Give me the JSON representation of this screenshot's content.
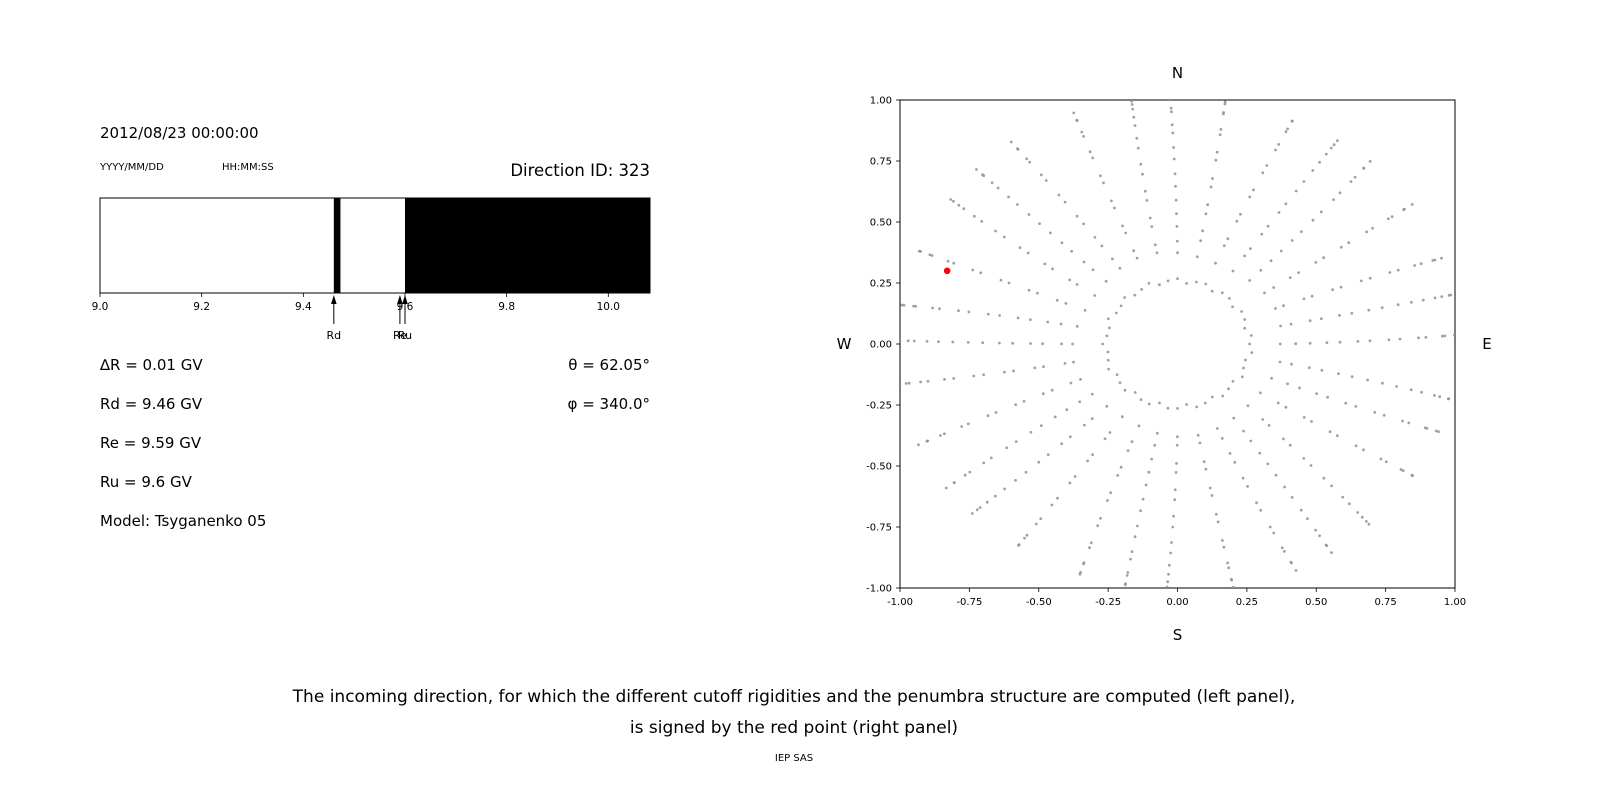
{
  "header": {
    "datetime": "2012/08/23 00:00:00",
    "date_format_label": "YYYY/MM/DD",
    "time_format_label": "HH:MM:SS",
    "direction_id": "Direction ID: 323"
  },
  "left_panel": {
    "info_lines": [
      "∆R = 0.01 GV",
      "Rd = 9.46 GV",
      "Re = 9.59 GV",
      "Ru = 9.6 GV",
      "Model: Tsyganenko 05"
    ],
    "theta": "θ = 62.05°",
    "phi": "φ = 340.0°"
  },
  "caption": {
    "line1": "The incoming direction, for which the different cutoff rigidities and the penumbra structure are computed (left panel),",
    "line2": "is signed by the red point (right panel)",
    "credit": "IEP SAS"
  },
  "chart_data": [
    {
      "type": "bar",
      "subtype": "penumbra-rigidity-band",
      "description": "Cutoff rigidity penumbra: white = allowed, black = forbidden rigidity bands",
      "xlim": [
        9.0,
        10.082
      ],
      "x_ticks": [
        {
          "v": 9.0,
          "label": "9.0"
        },
        {
          "v": 9.2,
          "label": "9.2"
        },
        {
          "v": 9.4,
          "label": "9.4"
        },
        {
          "v": 9.6,
          "label": "9.6"
        },
        {
          "v": 9.8,
          "label": "9.8"
        },
        {
          "v": 10.0,
          "label": "10.0"
        }
      ],
      "values": {
        "delta_R_GV": 0.01,
        "Rd_GV": 9.46,
        "Re_GV": 9.59,
        "Ru_GV": 9.6,
        "theta_deg": 62.05,
        "phi_deg": 340.0,
        "model": "Tsyganenko 05",
        "direction_id": 323,
        "datetime": "2012/08/23 00:00:00"
      },
      "forbidden_bands": [
        [
          9.46,
          9.473
        ],
        [
          9.6,
          10.082
        ]
      ],
      "allowed_color": "#ffffff",
      "forbidden_color": "#000000",
      "markers": [
        {
          "label": "Rd",
          "x": 9.46
        },
        {
          "label": "Re",
          "x": 9.59
        },
        {
          "label": "Ru",
          "x": 9.6
        }
      ]
    },
    {
      "type": "scatter",
      "subtype": "incoming-direction-map",
      "compass": {
        "top": "N",
        "bottom": "S",
        "left": "W",
        "right": "E"
      },
      "xlim": [
        -1.0,
        1.0
      ],
      "ylim": [
        -1.0,
        1.0
      ],
      "x_ticks": [
        {
          "v": -1.0,
          "label": "-1.00"
        },
        {
          "v": -0.75,
          "label": "-0.75"
        },
        {
          "v": -0.5,
          "label": "-0.50"
        },
        {
          "v": -0.25,
          "label": "-0.25"
        },
        {
          "v": 0.0,
          "label": "0.00"
        },
        {
          "v": 0.25,
          "label": "0.25"
        },
        {
          "v": 0.5,
          "label": "0.50"
        },
        {
          "v": 0.75,
          "label": "0.75"
        },
        {
          "v": 1.0,
          "label": "1.00"
        }
      ],
      "y_ticks": [
        {
          "v": 1.0,
          "label": "1.00"
        },
        {
          "v": 0.75,
          "label": "0.75"
        },
        {
          "v": 0.5,
          "label": "0.50"
        },
        {
          "v": 0.25,
          "label": "0.25"
        },
        {
          "v": 0.0,
          "label": "0.00"
        },
        {
          "v": -0.25,
          "label": "-0.25"
        },
        {
          "v": -0.5,
          "label": "-0.50"
        },
        {
          "v": -0.75,
          "label": "-0.75"
        },
        {
          "v": -1.0,
          "label": "-1.00"
        }
      ],
      "dot_color": "#909090",
      "highlight_point": {
        "x": -0.83,
        "y": 0.3,
        "color": "#ff0000"
      },
      "pattern": {
        "spokes": 32,
        "spoke_radii": [
          0.37,
          0.425,
          0.48,
          0.535,
          0.59,
          0.645,
          0.7,
          0.755,
          0.81,
          0.86,
          0.905,
          0.945,
          0.975,
          0.995,
          1.01
        ],
        "ring_radius": 0.26,
        "ring_points": 48
      }
    }
  ]
}
